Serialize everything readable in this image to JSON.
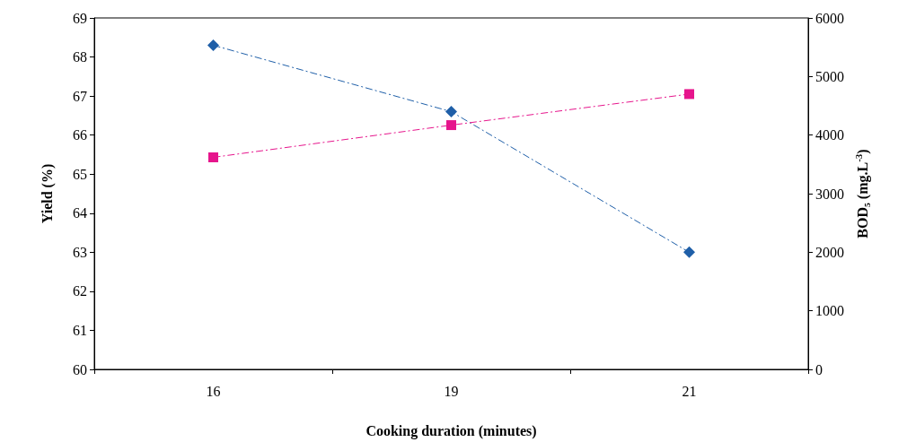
{
  "chart_data": {
    "type": "line",
    "xlabel": "Cooking duration (minutes)",
    "ylabel": "Yield (%)",
    "y2label": "BOD₅ (mg.L$^{-3}$)",
    "categories": [
      "16",
      "19",
      "21"
    ],
    "series": [
      {
        "color": "#1f5fa8",
        "values": [
          68.3,
          66.6,
          63.0
        ],
        "marker": "diamond"
      },
      {
        "color": "#e6158c",
        "values": [
          3620,
          4170,
          4700
        ],
        "marker": "square",
        "axis": "y2"
      }
    ],
    "ylim": [
      60,
      69
    ],
    "yticks": [
      60,
      61,
      62,
      63,
      64,
      65,
      66,
      67,
      68,
      69
    ],
    "y2lim": [
      0,
      6000
    ],
    "y2ticks": [
      0,
      1000,
      2000,
      3000,
      4000,
      5000,
      6000
    ],
    "line_style": "dashed"
  }
}
